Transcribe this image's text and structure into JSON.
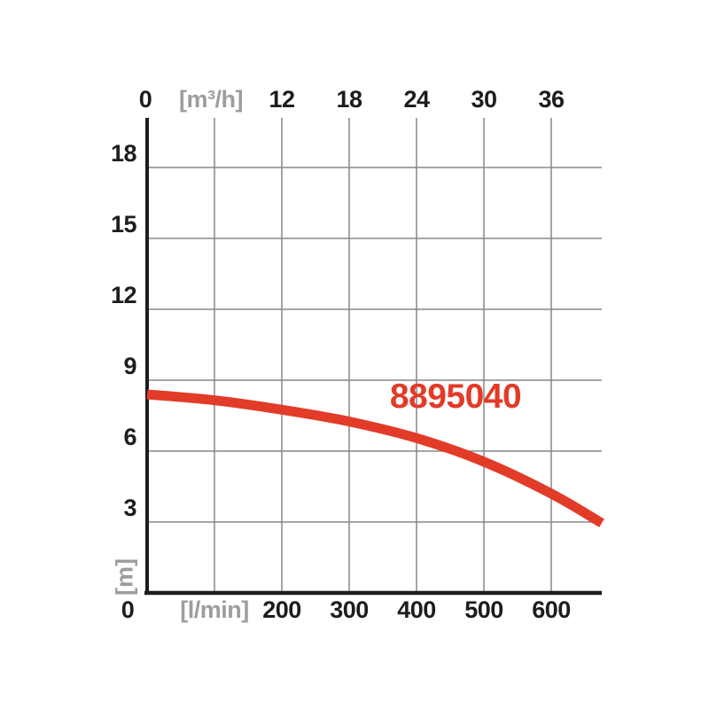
{
  "colors": {
    "background": "#ffffff",
    "text": "#1d1d1b",
    "unit_text": "#9d9d9c",
    "grid": "#878787",
    "axis": "#1d1d1b",
    "curve": "#e23b28"
  },
  "chart_data": {
    "type": "line",
    "title": "",
    "grid": true,
    "x_axis_top": {
      "unit_label": "[m³/h]",
      "ticks_m3h": [
        0,
        6,
        12,
        18,
        24,
        30,
        36
      ],
      "tick_labels": [
        "0",
        "[m³/h]",
        "12",
        "18",
        "24",
        "30",
        "36"
      ]
    },
    "x_axis_bottom": {
      "unit_label": "[l/min]",
      "ticks_lmin": [
        0,
        100,
        200,
        300,
        400,
        500,
        600
      ],
      "tick_labels": [
        "0",
        "[l/min]",
        "200",
        "300",
        "400",
        "500",
        "600"
      ]
    },
    "y_axis": {
      "unit_label": "[m]",
      "ticks_m": [
        18,
        15,
        12,
        9,
        6,
        3
      ],
      "tick_labels": [
        "18",
        "15",
        "12",
        "9",
        "6",
        "3"
      ],
      "ylim_m": [
        0,
        20
      ]
    },
    "xlim_lmin": [
      0,
      675
    ],
    "series": [
      {
        "name": "8895040",
        "points_lmin_m": [
          [
            0,
            8.4
          ],
          [
            100,
            8.15
          ],
          [
            200,
            7.75
          ],
          [
            300,
            7.25
          ],
          [
            400,
            6.55
          ],
          [
            500,
            5.55
          ],
          [
            600,
            4.2
          ],
          [
            675,
            2.95
          ]
        ]
      }
    ]
  }
}
